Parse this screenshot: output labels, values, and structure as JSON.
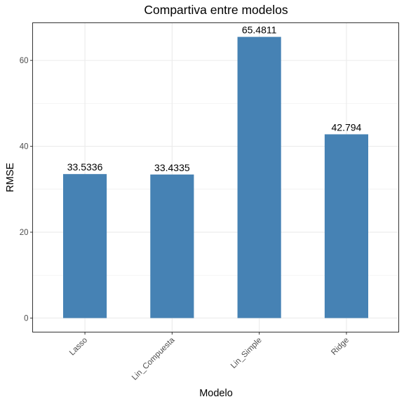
{
  "chart_data": {
    "type": "bar",
    "title": "Compartiva entre modelos",
    "xlabel": "Modelo",
    "ylabel": "RMSE",
    "categories": [
      "Lasso",
      "Lin_Compuesta",
      "Lin_Simple",
      "Ridge"
    ],
    "values": [
      33.5336,
      33.4335,
      65.4811,
      42.794
    ],
    "data_labels": [
      "33.5336",
      "33.4335",
      "65.4811",
      "42.794"
    ],
    "y_ticks": [
      0,
      20,
      40,
      60
    ],
    "y_tick_labels": [
      "0",
      "20",
      "40",
      "60"
    ],
    "ylim": [
      -3.27,
      68.76
    ],
    "grid": true,
    "bar_color": "#4682b4",
    "grid_color": "#ebebeb",
    "panel_border_color": "#333333"
  }
}
